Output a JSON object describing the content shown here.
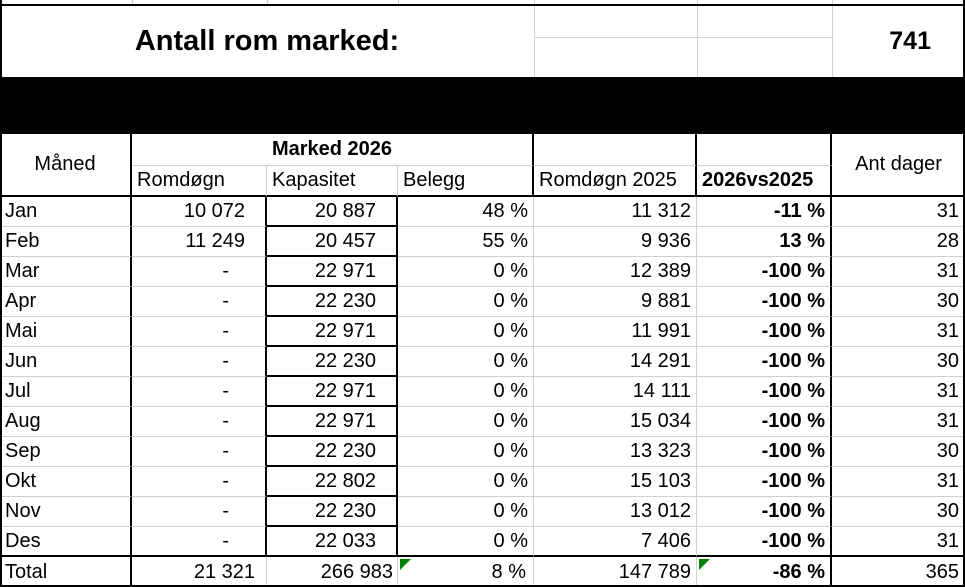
{
  "sheet": {
    "title": "Antall rom marked:",
    "rooms_value": "741",
    "headers": {
      "month": "Måned",
      "group2026": "Marked 2026",
      "romdogn": "Romdøgn",
      "kapasitet": "Kapasitet",
      "belegg": "Belegg",
      "romdogn2025": "Romdøgn 2025",
      "vs": "2026vs2025",
      "antdager": "Ant dager"
    },
    "columns_keys": [
      "maaned",
      "romdogn-2026",
      "kapasitet-2026",
      "belegg-2026",
      "romdogn-2025",
      "2026vs2025",
      "ant-dager"
    ],
    "rows": [
      [
        "Jan",
        "10 072",
        "20 887",
        "48 %",
        "11 312",
        "-11 %",
        "31"
      ],
      [
        "Feb",
        "11 249",
        "20 457",
        "55 %",
        "9 936",
        "13 %",
        "28"
      ],
      [
        "Mar",
        "-",
        "22 971",
        "0 %",
        "12 389",
        "-100 %",
        "31"
      ],
      [
        "Apr",
        "-",
        "22 230",
        "0 %",
        "9 881",
        "-100 %",
        "30"
      ],
      [
        "Mai",
        "-",
        "22 971",
        "0 %",
        "11 991",
        "-100 %",
        "31"
      ],
      [
        "Jun",
        "-",
        "22 230",
        "0 %",
        "14 291",
        "-100 %",
        "30"
      ],
      [
        "Jul",
        "-",
        "22 971",
        "0 %",
        "14 111",
        "-100 %",
        "31"
      ],
      [
        "Aug",
        "-",
        "22 971",
        "0 %",
        "15 034",
        "-100 %",
        "31"
      ],
      [
        "Sep",
        "-",
        "22 230",
        "0 %",
        "13 323",
        "-100 %",
        "30"
      ],
      [
        "Okt",
        "-",
        "22 802",
        "0 %",
        "15 103",
        "-100 %",
        "31"
      ],
      [
        "Nov",
        "-",
        "22 230",
        "0 %",
        "13 012",
        "-100 %",
        "30"
      ],
      [
        "Des",
        "-",
        "22 033",
        "0 %",
        "7 406",
        "-100 %",
        "31"
      ],
      [
        "Total",
        "21 321",
        "266 983",
        "8 %",
        "147 789",
        "-86 %",
        "365"
      ]
    ],
    "warning_flags": [
      {
        "row": "Total",
        "column": "Belegg"
      },
      {
        "row": "Total",
        "column": "2026vs2025"
      }
    ],
    "colors": {
      "gridline": "#d0d0d0",
      "border": "#000000",
      "band": "#000000",
      "flag_green": "#008000",
      "background": "#ffffff",
      "text": "#000000"
    }
  }
}
